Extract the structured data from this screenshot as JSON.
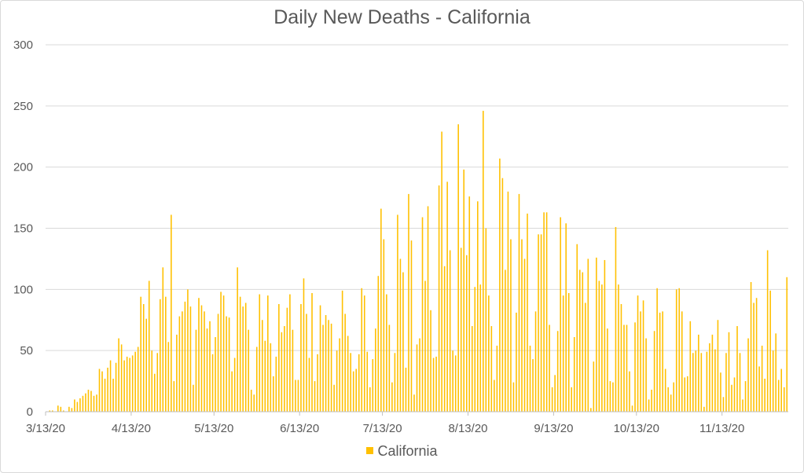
{
  "chart_data": {
    "type": "bar",
    "title": "Daily New Deaths - California",
    "xlabel": "",
    "ylabel": "",
    "ylim": [
      0,
      300
    ],
    "y_ticks": [
      "0",
      "50",
      "100",
      "150",
      "200",
      "250",
      "300"
    ],
    "x_tick_labels": [
      "3/13/20",
      "4/13/20",
      "5/13/20",
      "6/13/20",
      "7/13/20",
      "8/13/20",
      "9/13/20",
      "10/13/20",
      "11/13/20"
    ],
    "grid": true,
    "legend_position": "bottom",
    "series": [
      {
        "name": "California",
        "color": "#FFC000",
        "start_date": "3/13/20",
        "values": [
          0,
          1,
          1,
          0,
          5,
          4,
          1,
          0,
          4,
          3,
          10,
          8,
          11,
          13,
          15,
          18,
          17,
          13,
          14,
          35,
          33,
          27,
          36,
          42,
          27,
          40,
          60,
          55,
          42,
          45,
          44,
          46,
          49,
          53,
          94,
          88,
          76,
          107,
          50,
          31,
          48,
          92,
          118,
          94,
          57,
          161,
          25,
          63,
          78,
          82,
          90,
          100,
          86,
          22,
          67,
          93,
          87,
          82,
          68,
          74,
          47,
          61,
          80,
          98,
          95,
          78,
          77,
          33,
          44,
          118,
          94,
          86,
          89,
          67,
          18,
          14,
          53,
          96,
          75,
          58,
          95,
          56,
          29,
          45,
          88,
          65,
          70,
          85,
          96,
          67,
          26,
          26,
          88,
          109,
          80,
          44,
          97,
          25,
          47,
          87,
          71,
          79,
          75,
          72,
          22,
          50,
          60,
          99,
          80,
          62,
          48,
          33,
          35,
          47,
          101,
          95,
          49,
          20,
          43,
          68,
          111,
          166,
          141,
          96,
          71,
          24,
          48,
          161,
          125,
          114,
          36,
          178,
          140,
          14,
          55,
          60,
          159,
          107,
          168,
          83,
          44,
          45,
          185,
          229,
          119,
          188,
          132,
          50,
          46,
          235,
          134,
          198,
          128,
          176,
          70,
          102,
          172,
          104,
          246,
          150,
          95,
          70,
          26,
          54,
          207,
          191,
          116,
          180,
          141,
          24,
          81,
          178,
          141,
          125,
          162,
          54,
          43,
          82,
          145,
          145,
          163,
          163,
          71,
          20,
          30,
          66,
          159,
          95,
          154,
          97,
          20,
          61,
          137,
          116,
          114,
          89,
          125,
          3,
          41,
          126,
          107,
          104,
          124,
          68,
          25,
          24,
          151,
          104,
          88,
          71,
          71,
          33,
          5,
          73,
          95,
          82,
          91,
          60,
          10,
          18,
          66,
          101,
          81,
          82,
          35,
          20,
          14,
          24,
          100,
          101,
          82,
          28,
          29,
          74,
          48,
          50,
          63,
          48,
          4,
          49,
          56,
          63,
          51,
          75,
          32,
          12,
          48,
          65,
          22,
          28,
          70,
          48,
          10,
          25,
          60,
          106,
          89,
          93,
          37,
          54,
          27,
          132,
          99,
          50,
          64,
          26,
          35,
          20,
          110
        ]
      }
    ]
  }
}
